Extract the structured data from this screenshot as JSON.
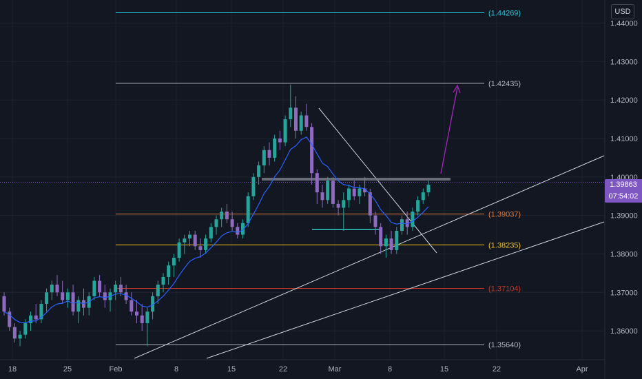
{
  "chart_data": {
    "type": "candlestick",
    "currency": "USD",
    "current_price": "1.39863",
    "countdown": "07:54:02",
    "ylim": [
      1.3525,
      1.446
    ],
    "y_ticks": [
      "1.44000",
      "1.43000",
      "1.42000",
      "1.41000",
      "1.40000",
      "1.39000",
      "1.38000",
      "1.37000",
      "1.36000"
    ],
    "x_ticks": [
      "18",
      "25",
      "Feb",
      "8",
      "15",
      "22",
      "Mar",
      "8",
      "15",
      "22",
      "Apr"
    ],
    "levels": [
      {
        "label": "(1.44269)",
        "value": 1.44269,
        "color": "#26c6da"
      },
      {
        "label": "(1.42435)",
        "value": 1.42435,
        "color": "#b2b5be"
      },
      {
        "label": "(1.39037)",
        "value": 1.39037,
        "color": "#e07b39"
      },
      {
        "label": "(1.38235)",
        "value": 1.38235,
        "color": "#f5c518"
      },
      {
        "label": "(1.37104)",
        "value": 1.37104,
        "color": "#c0392b"
      },
      {
        "label": "(1.35640)",
        "value": 1.3564,
        "color": "#b2b5be"
      }
    ],
    "candles": [
      [
        1.369,
        1.37,
        1.364,
        1.365
      ],
      [
        1.365,
        1.366,
        1.36,
        1.361
      ],
      [
        1.361,
        1.362,
        1.357,
        1.358
      ],
      [
        1.358,
        1.36,
        1.356,
        1.359
      ],
      [
        1.359,
        1.363,
        1.358,
        1.362
      ],
      [
        1.362,
        1.365,
        1.36,
        1.364
      ],
      [
        1.364,
        1.367,
        1.362,
        1.363
      ],
      [
        1.363,
        1.368,
        1.362,
        1.367
      ],
      [
        1.367,
        1.371,
        1.365,
        1.37
      ],
      [
        1.37,
        1.373,
        1.368,
        1.372
      ],
      [
        1.372,
        1.3745,
        1.369,
        1.37
      ],
      [
        1.37,
        1.373,
        1.367,
        1.368
      ],
      [
        1.368,
        1.371,
        1.366,
        1.37
      ],
      [
        1.37,
        1.372,
        1.364,
        1.365
      ],
      [
        1.365,
        1.369,
        1.362,
        1.368
      ],
      [
        1.368,
        1.371,
        1.364,
        1.366
      ],
      [
        1.366,
        1.37,
        1.364,
        1.369
      ],
      [
        1.369,
        1.374,
        1.368,
        1.373
      ],
      [
        1.373,
        1.3745,
        1.369,
        1.37
      ],
      [
        1.37,
        1.372,
        1.366,
        1.368
      ],
      [
        1.368,
        1.371,
        1.365,
        1.37
      ],
      [
        1.37,
        1.373,
        1.368,
        1.372
      ],
      [
        1.372,
        1.374,
        1.369,
        1.37
      ],
      [
        1.37,
        1.372,
        1.367,
        1.368
      ],
      [
        1.368,
        1.37,
        1.364,
        1.365
      ],
      [
        1.365,
        1.368,
        1.362,
        1.364
      ],
      [
        1.364,
        1.367,
        1.36,
        1.362
      ],
      [
        1.362,
        1.366,
        1.356,
        1.365
      ],
      [
        1.365,
        1.37,
        1.363,
        1.369
      ],
      [
        1.369,
        1.373,
        1.367,
        1.372
      ],
      [
        1.372,
        1.375,
        1.37,
        1.374
      ],
      [
        1.374,
        1.378,
        1.372,
        1.377
      ],
      [
        1.377,
        1.38,
        1.374,
        1.379
      ],
      [
        1.379,
        1.384,
        1.378,
        1.383
      ],
      [
        1.383,
        1.385,
        1.38,
        1.384
      ],
      [
        1.384,
        1.386,
        1.382,
        1.385
      ],
      [
        1.385,
        1.386,
        1.381,
        1.382
      ],
      [
        1.382,
        1.384,
        1.379,
        1.381
      ],
      [
        1.381,
        1.385,
        1.38,
        1.384
      ],
      [
        1.384,
        1.388,
        1.383,
        1.387
      ],
      [
        1.387,
        1.39,
        1.385,
        1.389
      ],
      [
        1.389,
        1.392,
        1.387,
        1.391
      ],
      [
        1.391,
        1.393,
        1.388,
        1.389
      ],
      [
        1.389,
        1.391,
        1.386,
        1.387
      ],
      [
        1.387,
        1.388,
        1.384,
        1.385
      ],
      [
        1.385,
        1.389,
        1.384,
        1.388
      ],
      [
        1.388,
        1.396,
        1.387,
        1.395
      ],
      [
        1.395,
        1.401,
        1.394,
        1.4
      ],
      [
        1.4,
        1.404,
        1.398,
        1.403
      ],
      [
        1.403,
        1.408,
        1.401,
        1.407
      ],
      [
        1.407,
        1.409,
        1.403,
        1.405
      ],
      [
        1.405,
        1.411,
        1.404,
        1.41
      ],
      [
        1.41,
        1.412,
        1.407,
        1.409
      ],
      [
        1.409,
        1.416,
        1.408,
        1.415
      ],
      [
        1.415,
        1.424,
        1.413,
        1.418
      ],
      [
        1.418,
        1.421,
        1.41,
        1.412
      ],
      [
        1.412,
        1.417,
        1.411,
        1.416
      ],
      [
        1.416,
        1.419,
        1.412,
        1.413
      ],
      [
        1.413,
        1.414,
        1.398,
        1.401
      ],
      [
        1.401,
        1.402,
        1.393,
        1.396
      ],
      [
        1.396,
        1.398,
        1.392,
        1.394
      ],
      [
        1.394,
        1.4,
        1.393,
        1.399
      ],
      [
        1.399,
        1.4,
        1.392,
        1.393
      ],
      [
        1.393,
        1.394,
        1.39,
        1.392
      ],
      [
        1.392,
        1.396,
        1.386,
        1.394
      ],
      [
        1.394,
        1.398,
        1.392,
        1.397
      ],
      [
        1.397,
        1.399,
        1.394,
        1.395
      ],
      [
        1.395,
        1.398,
        1.393,
        1.397
      ],
      [
        1.397,
        1.4,
        1.395,
        1.396
      ],
      [
        1.396,
        1.397,
        1.388,
        1.39
      ],
      [
        1.39,
        1.391,
        1.385,
        1.387
      ],
      [
        1.387,
        1.388,
        1.38,
        1.382
      ],
      [
        1.382,
        1.385,
        1.379,
        1.384
      ],
      [
        1.384,
        1.386,
        1.38,
        1.381
      ],
      [
        1.381,
        1.387,
        1.38,
        1.386
      ],
      [
        1.386,
        1.39,
        1.385,
        1.389
      ],
      [
        1.389,
        1.391,
        1.385,
        1.387
      ],
      [
        1.387,
        1.392,
        1.386,
        1.391
      ],
      [
        1.391,
        1.395,
        1.39,
        1.394
      ],
      [
        1.394,
        1.397,
        1.393,
        1.396
      ],
      [
        1.396,
        1.399,
        1.395,
        1.398
      ]
    ]
  }
}
